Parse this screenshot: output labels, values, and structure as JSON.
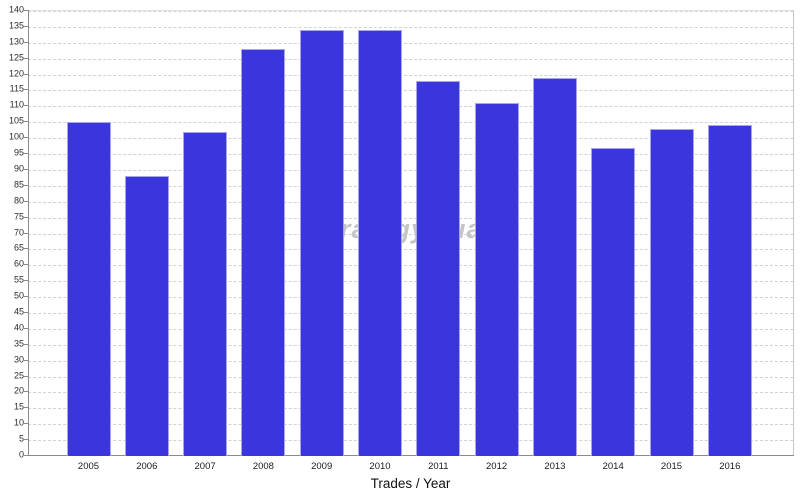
{
  "chart_data": {
    "type": "bar",
    "title": "",
    "xlabel": "Trades / Year",
    "ylabel": "",
    "categories": [
      "2005",
      "2006",
      "2007",
      "2008",
      "2009",
      "2010",
      "2011",
      "2012",
      "2013",
      "2014",
      "2015",
      "2016"
    ],
    "values": [
      105,
      88,
      102,
      128,
      134,
      134,
      118,
      111,
      119,
      97,
      103,
      104
    ],
    "ylim": [
      0,
      140
    ],
    "ytick_step": 5,
    "ytick_labels": [
      "0",
      "5",
      "10",
      "15",
      "20",
      "25",
      "30",
      "35",
      "40",
      "45",
      "50",
      "55",
      "60",
      "65",
      "70",
      "75",
      "80",
      "85",
      "90",
      "95",
      "100",
      "105",
      "110",
      "115",
      "120",
      "125",
      "130",
      "135",
      "140"
    ],
    "grid": "horizontal-dashed",
    "legend": "none",
    "watermark": "StrategyQuant",
    "colors": {
      "bar_fill": "#3a36db",
      "bar_outline": "#a9a5ec",
      "gridline": "#d2d2d2",
      "axis_line": "#8a8a8a",
      "tick_text": "#2b2b2b",
      "watermark_text": "#c6c6c6",
      "background": "#ffffff"
    }
  }
}
